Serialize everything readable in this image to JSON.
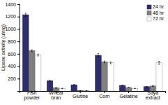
{
  "chart_data": {
    "type": "bar",
    "ylabel": "Lipase activity (u/mg)",
    "categories": [
      "Fish powder",
      "Wheat bran",
      "Glutine",
      "Corn",
      "Gelatine",
      "Soya extract"
    ],
    "series": [
      {
        "name": "24 hr",
        "color": "#2E2E6E",
        "values": [
          1230,
          165,
          100,
          575,
          90,
          70
        ],
        "errors": [
          25,
          8,
          6,
          30,
          6,
          5
        ]
      },
      {
        "name": "48 hr",
        "color": "#808080",
        "values": [
          650,
          50,
          5,
          470,
          55,
          80
        ],
        "errors": [
          15,
          6,
          3,
          15,
          5,
          5
        ]
      },
      {
        "name": "72 hr",
        "color": "#FFFFFF",
        "values": [
          580,
          40,
          5,
          455,
          40,
          455
        ],
        "errors": [
          15,
          5,
          3,
          15,
          4,
          25
        ]
      }
    ],
    "ylim": [
      0,
      1400
    ],
    "yticks": [
      200,
      400,
      600,
      800,
      1000,
      1200,
      1400
    ],
    "grid": false,
    "legend": "upper right"
  }
}
